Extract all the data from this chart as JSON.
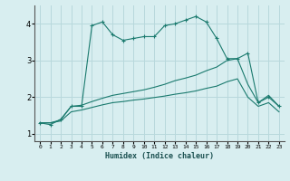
{
  "xlabel": "Humidex (Indice chaleur)",
  "background_color": "#d8eef0",
  "grid_color": "#b8d8dc",
  "line_color": "#1a7a6e",
  "xlim": [
    -0.5,
    23.5
  ],
  "ylim": [
    0.8,
    4.5
  ],
  "xticks": [
    0,
    1,
    2,
    3,
    4,
    5,
    6,
    7,
    8,
    9,
    10,
    11,
    12,
    13,
    14,
    15,
    16,
    17,
    18,
    19,
    20,
    21,
    22,
    23
  ],
  "yticks": [
    1,
    2,
    3,
    4
  ],
  "curve1_x": [
    0,
    1,
    2,
    3,
    4,
    5,
    6,
    7,
    8,
    9,
    10,
    11,
    12,
    13,
    14,
    15,
    16,
    17,
    18,
    19,
    20,
    21,
    22,
    23
  ],
  "curve1_y": [
    1.3,
    1.25,
    1.4,
    1.75,
    1.75,
    3.95,
    4.05,
    3.7,
    3.55,
    3.6,
    3.65,
    3.65,
    3.95,
    4.0,
    4.1,
    4.2,
    4.05,
    3.6,
    3.05,
    3.05,
    3.2,
    1.85,
    2.0,
    1.75
  ],
  "curve2_x": [
    0,
    1,
    2,
    3,
    4,
    5,
    6,
    7,
    8,
    9,
    10,
    11,
    12,
    13,
    14,
    15,
    16,
    17,
    18,
    19,
    20,
    21,
    22,
    23
  ],
  "curve2_y": [
    1.3,
    1.3,
    1.38,
    1.75,
    1.78,
    1.88,
    1.97,
    2.05,
    2.1,
    2.15,
    2.2,
    2.27,
    2.35,
    2.45,
    2.52,
    2.6,
    2.72,
    2.82,
    3.0,
    3.05,
    2.35,
    1.85,
    2.05,
    1.75
  ],
  "curve3_x": [
    0,
    1,
    2,
    3,
    4,
    5,
    6,
    7,
    8,
    9,
    10,
    11,
    12,
    13,
    14,
    15,
    16,
    17,
    18,
    19,
    20,
    21,
    22,
    23
  ],
  "curve3_y": [
    1.3,
    1.3,
    1.35,
    1.6,
    1.65,
    1.72,
    1.79,
    1.85,
    1.88,
    1.92,
    1.95,
    1.99,
    2.03,
    2.08,
    2.12,
    2.17,
    2.24,
    2.3,
    2.42,
    2.5,
    2.0,
    1.75,
    1.85,
    1.6
  ]
}
